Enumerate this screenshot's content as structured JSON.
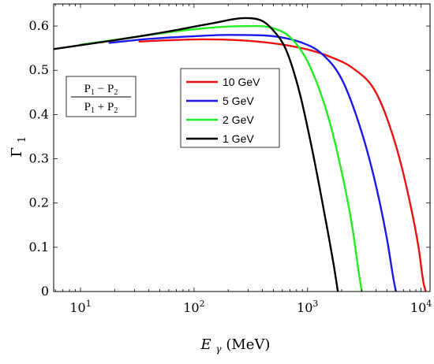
{
  "chart_data": {
    "type": "line",
    "title": "",
    "xlabel": {
      "main": "E",
      "sub": "γ",
      "unit": " (MeV)"
    },
    "ylabel": {
      "main": "Γ",
      "sub": "1"
    },
    "x_scale": "log",
    "xlim": [
      5.8,
      12000
    ],
    "ylim": [
      0,
      0.65
    ],
    "grid": false,
    "x_ticks": [
      {
        "value": 10,
        "base": "10",
        "exp": "1"
      },
      {
        "value": 100,
        "base": "10",
        "exp": "2"
      },
      {
        "value": 1000,
        "base": "10",
        "exp": "3"
      },
      {
        "value": 10000,
        "base": "10",
        "exp": "4"
      }
    ],
    "y_ticks": [
      {
        "value": 0,
        "label": "0"
      },
      {
        "value": 0.1,
        "label": "0.1"
      },
      {
        "value": 0.2,
        "label": "0.2"
      },
      {
        "value": 0.3,
        "label": "0.3"
      },
      {
        "value": 0.4,
        "label": "0.4"
      },
      {
        "value": 0.5,
        "label": "0.5"
      },
      {
        "value": 0.6,
        "label": "0.6"
      }
    ],
    "legend_position": "top-center",
    "series": [
      {
        "name": "10 GeV",
        "color": "#ee1111",
        "points": [
          [
            33,
            0.565
          ],
          [
            60,
            0.568
          ],
          [
            120,
            0.57
          ],
          [
            250,
            0.568
          ],
          [
            500,
            0.561
          ],
          [
            1000,
            0.547
          ],
          [
            1600,
            0.53
          ],
          [
            2500,
            0.505
          ],
          [
            4000,
            0.45
          ],
          [
            6000,
            0.33
          ],
          [
            8000,
            0.2
          ],
          [
            9500,
            0.1
          ],
          [
            10500,
            0.02
          ],
          [
            11000,
            0.0
          ]
        ]
      },
      {
        "name": "5 GeV",
        "color": "#1a1aee",
        "points": [
          [
            18,
            0.562
          ],
          [
            40,
            0.571
          ],
          [
            100,
            0.577
          ],
          [
            200,
            0.58
          ],
          [
            400,
            0.579
          ],
          [
            600,
            0.574
          ],
          [
            900,
            0.562
          ],
          [
            1300,
            0.54
          ],
          [
            2000,
            0.48
          ],
          [
            3000,
            0.36
          ],
          [
            4000,
            0.24
          ],
          [
            5000,
            0.12
          ],
          [
            5700,
            0.03
          ],
          [
            6000,
            0.0
          ]
        ]
      },
      {
        "name": "2 GeV",
        "color": "#22ee22",
        "points": [
          [
            10,
            0.558
          ],
          [
            30,
            0.575
          ],
          [
            80,
            0.59
          ],
          [
            200,
            0.599
          ],
          [
            350,
            0.6
          ],
          [
            500,
            0.595
          ],
          [
            700,
            0.575
          ],
          [
            1000,
            0.52
          ],
          [
            1500,
            0.4
          ],
          [
            2000,
            0.27
          ],
          [
            2500,
            0.14
          ],
          [
            2800,
            0.05
          ],
          [
            3000,
            0.0
          ]
        ]
      },
      {
        "name": "1 GeV",
        "color": "#000000",
        "points": [
          [
            5.8,
            0.548
          ],
          [
            20,
            0.568
          ],
          [
            60,
            0.588
          ],
          [
            150,
            0.607
          ],
          [
            280,
            0.618
          ],
          [
            380,
            0.614
          ],
          [
            500,
            0.59
          ],
          [
            650,
            0.545
          ],
          [
            850,
            0.45
          ],
          [
            1100,
            0.32
          ],
          [
            1400,
            0.18
          ],
          [
            1700,
            0.06
          ],
          [
            1850,
            0.0
          ]
        ]
      }
    ],
    "annotation": {
      "numerator": {
        "a": "P",
        "a_sub": "1",
        "op": " − ",
        "b": "P",
        "b_sub": "2"
      },
      "denominator": {
        "a": "P",
        "a_sub": "1",
        "op": " + ",
        "b": "P",
        "b_sub": "2"
      }
    }
  }
}
